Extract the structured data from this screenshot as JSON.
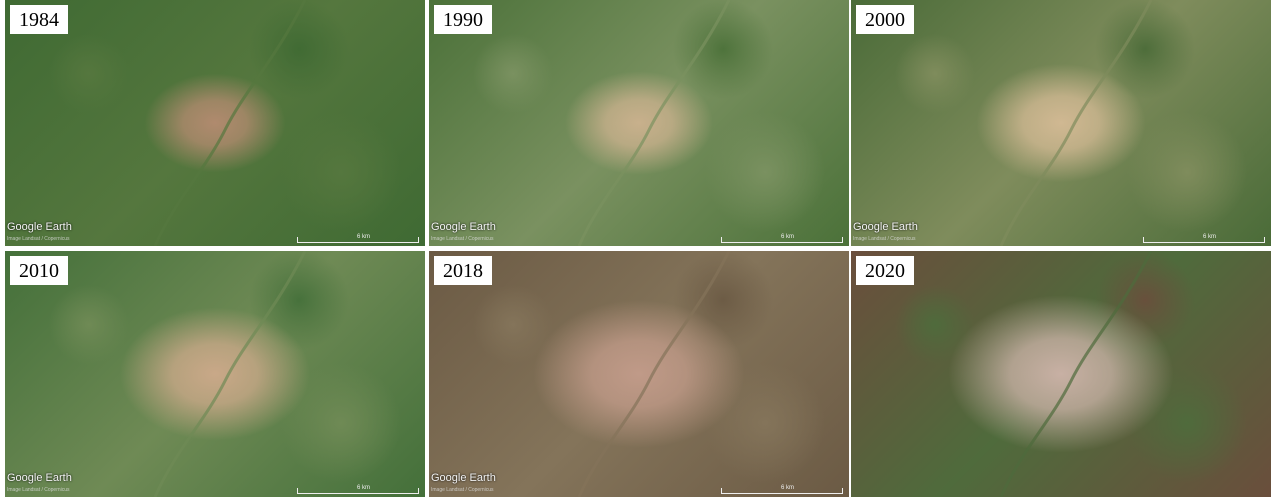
{
  "panels": [
    {
      "year": "1984",
      "logo": "Google Earth",
      "credit": "Image Landsat / Copernicus",
      "scale": "6 km",
      "ground": "#3f6a33",
      "ground2": "#55773e",
      "urban": "#b08a6e",
      "urban_level": 0.15
    },
    {
      "year": "1990",
      "logo": "Google Earth",
      "credit": "Image Landsat / Copernicus",
      "scale": "6 km",
      "ground": "#4b7139",
      "ground2": "#7a9160",
      "urban": "#c8b08c",
      "urban_level": 0.2
    },
    {
      "year": "2000",
      "logo": "Google Earth",
      "credit": "Image Landsat / Copernicus",
      "scale": "6 km",
      "ground": "#4a6b38",
      "ground2": "#7f8c5c",
      "urban": "#d0b892",
      "urban_level": 0.35
    },
    {
      "year": "2010",
      "logo": "Google Earth",
      "credit": "Image Landsat / Copernicus",
      "scale": "6 km",
      "ground": "#44703a",
      "ground2": "#6f8a55",
      "urban": "#c9a888",
      "urban_level": 0.5
    },
    {
      "year": "2018",
      "logo": "Google Earth",
      "credit": "Image Landsat / Copernicus",
      "scale": "6 km",
      "ground": "#6b5a44",
      "ground2": "#84745a",
      "urban": "#c09a88",
      "urban_level": 0.65
    },
    {
      "year": "2020",
      "logo": "",
      "credit": "",
      "scale": "",
      "ground": "#6a4e3c",
      "ground2": "#4f6b3c",
      "urban": "#c8b0a4",
      "urban_level": 0.75
    }
  ]
}
